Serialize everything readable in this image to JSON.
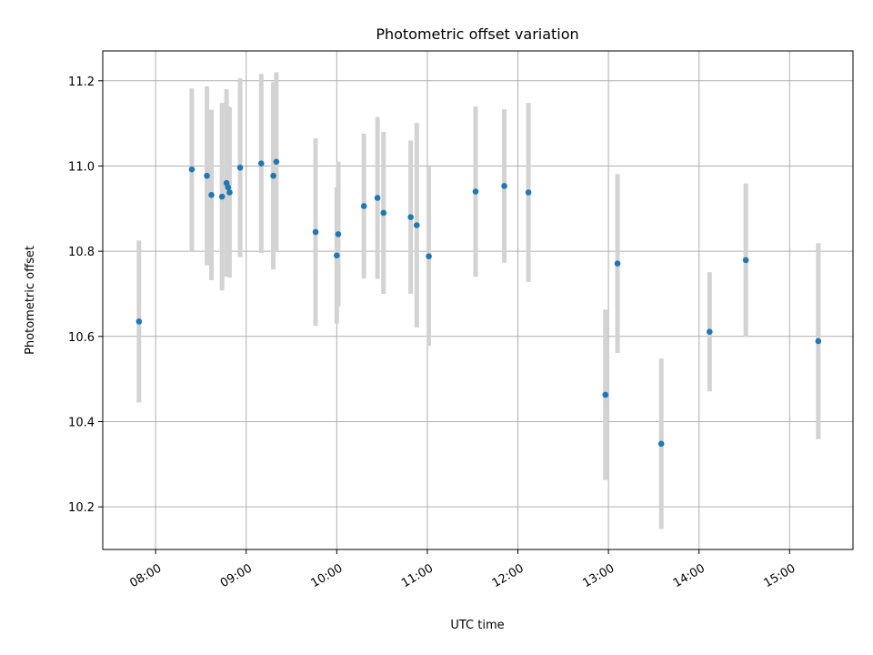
{
  "chart_data": {
    "type": "scatter",
    "title": "Photometric offset variation",
    "xlabel": "UTC time",
    "ylabel": "Photometric offset",
    "grid": true,
    "xlim": [
      "07:25",
      "15:42"
    ],
    "ylim": [
      10.1,
      11.27
    ],
    "xticks": [
      "08:00",
      "09:00",
      "10:00",
      "11:00",
      "12:00",
      "13:00",
      "14:00",
      "15:00"
    ],
    "yticks": [
      "10.2",
      "10.4",
      "10.6",
      "10.8",
      "11.0",
      "11.2"
    ],
    "colors": {
      "point": "#1f77b4",
      "errorbar": "#d3d3d3",
      "grid": "#b0b0b0"
    },
    "points": [
      {
        "x": "07:49",
        "y": 10.635,
        "err": 0.19
      },
      {
        "x": "08:24",
        "y": 10.992,
        "err": 0.19
      },
      {
        "x": "08:34",
        "y": 10.977,
        "err": 0.21
      },
      {
        "x": "08:37",
        "y": 10.932,
        "err": 0.2
      },
      {
        "x": "08:44",
        "y": 10.928,
        "err": 0.22
      },
      {
        "x": "08:47",
        "y": 10.96,
        "err": 0.22
      },
      {
        "x": "08:48",
        "y": 10.95,
        "err": 0.19
      },
      {
        "x": "08:49",
        "y": 10.938,
        "err": 0.2
      },
      {
        "x": "08:56",
        "y": 10.996,
        "err": 0.21
      },
      {
        "x": "09:10",
        "y": 11.006,
        "err": 0.21
      },
      {
        "x": "09:18",
        "y": 10.977,
        "err": 0.22
      },
      {
        "x": "09:20",
        "y": 11.01,
        "err": 0.21
      },
      {
        "x": "09:46",
        "y": 10.845,
        "err": 0.22
      },
      {
        "x": "10:00",
        "y": 10.79,
        "err": 0.16
      },
      {
        "x": "10:01",
        "y": 10.84,
        "err": 0.17
      },
      {
        "x": "10:18",
        "y": 10.906,
        "err": 0.17
      },
      {
        "x": "10:27",
        "y": 10.925,
        "err": 0.19
      },
      {
        "x": "10:31",
        "y": 10.89,
        "err": 0.19
      },
      {
        "x": "10:49",
        "y": 10.88,
        "err": 0.18
      },
      {
        "x": "10:53",
        "y": 10.861,
        "err": 0.24
      },
      {
        "x": "11:01",
        "y": 10.788,
        "err": 0.21
      },
      {
        "x": "11:32",
        "y": 10.94,
        "err": 0.2
      },
      {
        "x": "11:51",
        "y": 10.953,
        "err": 0.18
      },
      {
        "x": "12:07",
        "y": 10.938,
        "err": 0.21
      },
      {
        "x": "12:58",
        "y": 10.463,
        "err": 0.2
      },
      {
        "x": "13:06",
        "y": 10.771,
        "err": 0.21
      },
      {
        "x": "13:35",
        "y": 10.348,
        "err": 0.2
      },
      {
        "x": "14:07",
        "y": 10.611,
        "err": 0.14
      },
      {
        "x": "14:31",
        "y": 10.779,
        "err": 0.18
      },
      {
        "x": "15:19",
        "y": 10.589,
        "err": 0.23
      }
    ]
  }
}
